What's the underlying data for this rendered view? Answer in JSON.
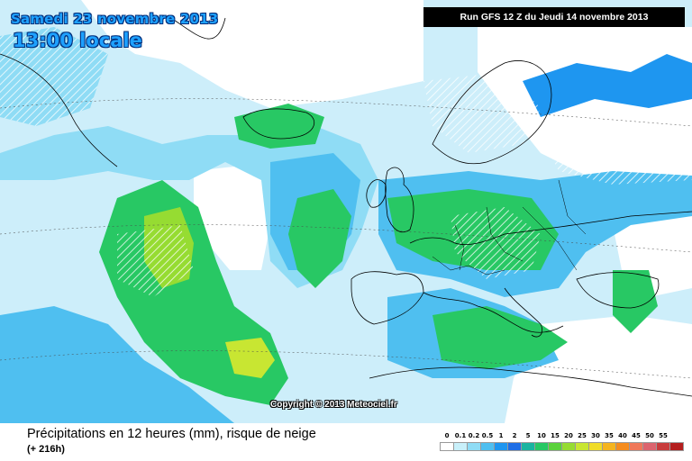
{
  "header": {
    "date_text": "Samedi 23 novembre 2013",
    "time_text": "13:00 locale",
    "run_text": "Run GFS 12 Z du Jeudi 14 novembre 2013"
  },
  "map": {
    "region": "North Atlantic and Europe",
    "copyright": "Copyright © 2013 Meteociel.fr"
  },
  "footer": {
    "caption": "Précipitations en 12 heures (mm), risque de neige",
    "forecast_offset": "(+ 216h)"
  },
  "legend": {
    "labels": [
      "0",
      "0.1",
      "0.2",
      "0.5",
      "1",
      "2",
      "5",
      "10",
      "15",
      "20",
      "25",
      "30",
      "35",
      "40",
      "45",
      "50",
      "55"
    ],
    "colors": [
      "#ffffff",
      "#c8f0fa",
      "#8fdcf5",
      "#4fbff0",
      "#1e96f0",
      "#1e6ee6",
      "#19b4a0",
      "#28c864",
      "#5ad23c",
      "#96dc32",
      "#c8e632",
      "#f0dc28",
      "#f5b41e",
      "#f58c1e",
      "#f0785a",
      "#dc646e",
      "#c83c3c",
      "#b41e1e"
    ]
  }
}
